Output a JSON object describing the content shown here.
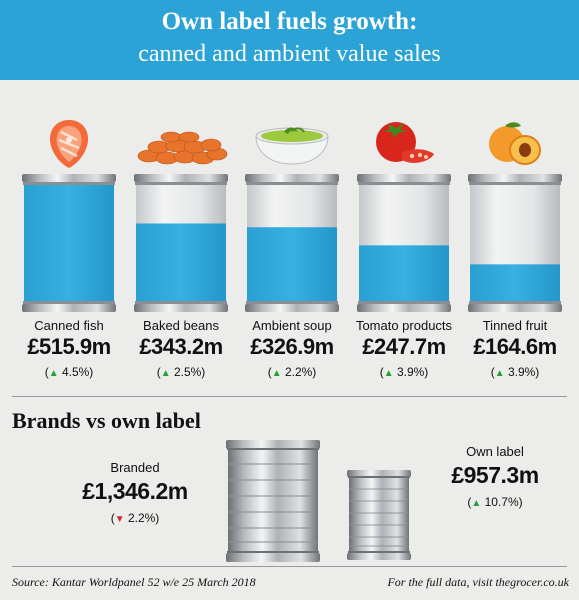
{
  "header": {
    "title": "Own label fuels growth:",
    "subtitle": "canned and ambient value sales"
  },
  "chart_data": {
    "type": "bar",
    "categories": [
      "Canned fish",
      "Baked beans",
      "Ambient soup",
      "Tomato products",
      "Tinned fruit"
    ],
    "values": [
      515.9,
      343.2,
      326.9,
      247.7,
      164.6
    ],
    "value_labels": [
      "£515.9m",
      "£343.2m",
      "£326.9m",
      "£247.7m",
      "£164.6m"
    ],
    "changes": [
      "4.5%",
      "2.5%",
      "2.2%",
      "3.9%",
      "3.9%"
    ],
    "change_direction": [
      "up",
      "up",
      "up",
      "up",
      "up"
    ],
    "icons": [
      "salmon-steak-icon",
      "baked-beans-icon",
      "soup-bowl-icon",
      "tomato-icon",
      "peach-icon"
    ],
    "bar_color": "#2ba3d6",
    "ylim": [
      0,
      515.9
    ]
  },
  "brands_section": {
    "title": "Brands vs own label",
    "branded": {
      "label": "Branded",
      "value": "£1,346.2m",
      "change": "2.2%",
      "direction": "down",
      "amount": 1346.2
    },
    "own_label": {
      "label": "Own label",
      "value": "£957.3m",
      "change": "10.7%",
      "direction": "up",
      "amount": 957.3
    }
  },
  "footer": {
    "source": "Source: Kantar Worldpanel 52 w/e 25 March 2018",
    "link_text": "For the full data, visit thegrocer.co.uk"
  },
  "colors": {
    "header": "#2ba3d6",
    "up_arrow": "#2a9d3b",
    "down_arrow": "#d12b2b"
  }
}
